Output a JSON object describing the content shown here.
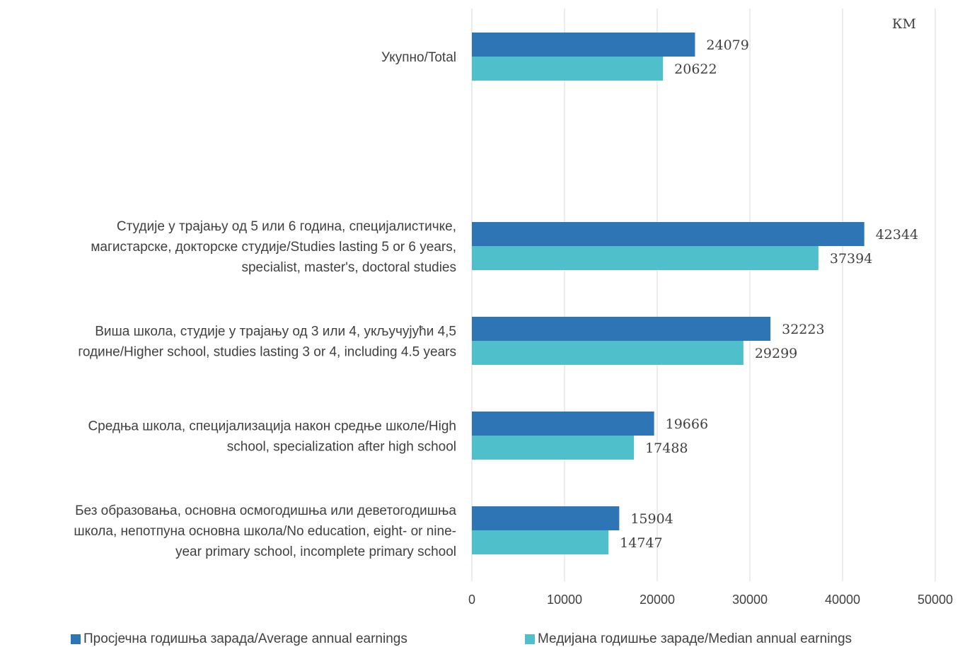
{
  "chart_data": {
    "type": "bar",
    "orientation": "horizontal",
    "unit": "КМ",
    "categories": [
      "Укупно/Total",
      "",
      "Студије у трајању од 5 или 6 година, специјалистичке, магистарске, докторске студије/Studies lasting 5 or 6 years, specialist, master's, doctoral studies",
      "Виша школа, студије у трајању од 3 или 4, укључујући 4,5 године/Higher school, studies lasting 3 or 4, including 4.5 years",
      "Средња школа, специјализација након средње школе/High school, specialization after high school",
      "Без образовања, основна  осмогодишња или деветогодишња школа, непотпуна основна школа/No education, eight- or nine-year primary school, incomplete primary school"
    ],
    "category_lines": [
      [
        "Укупно/Total"
      ],
      [],
      [
        "Студије у трајању од 5 или 6 година, специјалистичке,",
        "магистарске, докторске студије/Studies lasting 5 or 6 years,",
        "specialist, master's, doctoral studies"
      ],
      [
        "Виша школа, студије у трајању од 3 или 4, укључујући 4,5",
        "године/Higher school, studies lasting 3 or 4, including 4.5 years"
      ],
      [
        "Средња школа, специјализација након средње школе/High",
        "school, specialization after high school"
      ],
      [
        "Без образовања, основна  осмогодишња или деветогодишња",
        "школа, непотпуна основна школа/No education, eight- or nine-",
        "year primary school, incomplete primary school"
      ]
    ],
    "series": [
      {
        "name": "Просјечна годишња зарада/Average annual earnings",
        "color": "#2E75B6",
        "values": [
          24079,
          null,
          42344,
          32223,
          19666,
          15904
        ]
      },
      {
        "name": "Медијана годишње зараде/Median annual earnings",
        "color": "#4FBFCC",
        "values": [
          20622,
          null,
          37394,
          29299,
          17488,
          14747
        ]
      }
    ],
    "xlim": [
      0,
      50000
    ],
    "xticks": [
      "0",
      "10000",
      "20000",
      "30000",
      "40000",
      "50000"
    ],
    "grid": true,
    "legend_position": "bottom"
  }
}
